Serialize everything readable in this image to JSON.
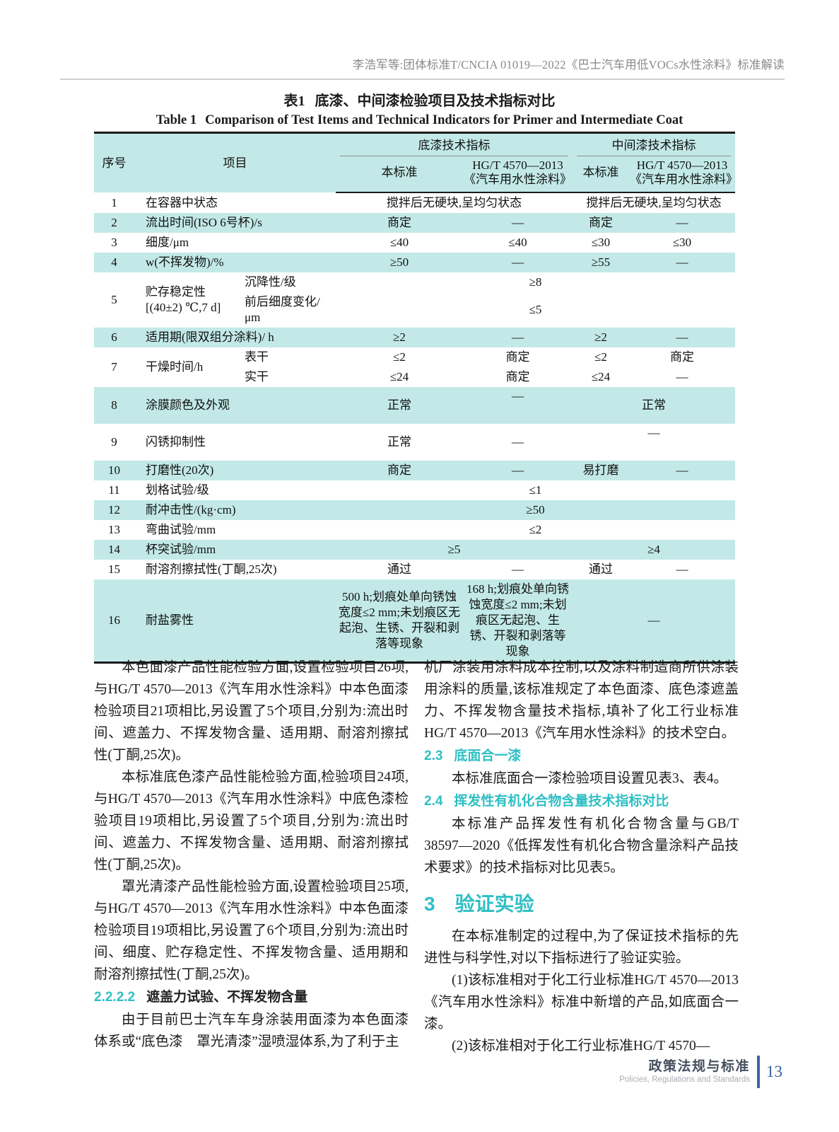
{
  "colors": {
    "teal_accent": "#2fbfc4",
    "table_stripe": "#c2e9e7",
    "footer_blue": "#33639c",
    "running_head_gray": "#8a8a8a"
  },
  "running_head": "李浩军等:团体标准T/CNCIA 01019—2022《巴士汽车用低VOCs水性涂料》标准解读",
  "table": {
    "title_zh_label": "表1",
    "title_zh": "底漆、中间漆检验项目及技术指标对比",
    "title_en_label": "Table 1",
    "title_en": "Comparison of Test Items and Technical Indicators for Primer and Intermediate Coat",
    "header": {
      "no": "序号",
      "item": "项目",
      "primer_group": "底漆技术指标",
      "intermediate_group": "中间漆技术指标",
      "this_std_primer": "本标准",
      "hgt_std_primer": "HG/T 4570—2013《汽车用水性涂料》",
      "this_std_inter": "本标准",
      "hgt_std_inter": "HG/T 4570—2013《汽车用水性涂料》"
    },
    "rows": [
      {
        "shade": false,
        "cells": [
          {
            "t": "1"
          },
          {
            "t": "在容器中状态",
            "c": 2,
            "item": true
          },
          {
            "t": "搅拌后无硬块,呈均匀状态",
            "c": 2
          },
          {
            "t": "搅拌后无硬块,呈均匀状态",
            "c": 2
          }
        ]
      },
      {
        "shade": true,
        "cells": [
          {
            "t": "2"
          },
          {
            "t": "流出时间(ISO 6号杯)/s",
            "c": 2,
            "item": true
          },
          {
            "t": "商定"
          },
          {
            "t": "—"
          },
          {
            "t": "商定"
          },
          {
            "t": "—"
          }
        ]
      },
      {
        "shade": false,
        "cells": [
          {
            "t": "3"
          },
          {
            "t": "细度/μm",
            "c": 2,
            "item": true
          },
          {
            "t": "≤40"
          },
          {
            "t": "≤40"
          },
          {
            "t": "≤30"
          },
          {
            "t": "≤30"
          }
        ]
      },
      {
        "shade": true,
        "cells": [
          {
            "t": "4"
          },
          {
            "t": "w(不挥发物)/%",
            "c": 2,
            "item": true
          },
          {
            "t": "≥50"
          },
          {
            "t": "—"
          },
          {
            "t": "≥55"
          },
          {
            "t": "—"
          }
        ]
      },
      {
        "shade": false,
        "cells": [
          {
            "t": "5",
            "r": 2
          },
          {
            "t": "贮存稳定性 [(40±2) ℃,7 d]",
            "r": 2,
            "item": true
          },
          {
            "t": "沉降性/级",
            "item": true
          },
          {
            "t": "≥8",
            "c": 4
          }
        ]
      },
      {
        "shade": false,
        "cells": [
          {
            "t": "前后细度变化/μm",
            "item": true
          },
          {
            "t": "≤5",
            "c": 4
          }
        ]
      },
      {
        "shade": true,
        "cells": [
          {
            "t": "6"
          },
          {
            "t": "适用期(限双组分涂料)/ h",
            "c": 2,
            "item": true
          },
          {
            "t": "≥2"
          },
          {
            "t": "—"
          },
          {
            "t": "≥2"
          },
          {
            "t": "—"
          }
        ]
      },
      {
        "shade": false,
        "cells": [
          {
            "t": "7",
            "r": 2
          },
          {
            "t": "干燥时间/h",
            "r": 2,
            "item": true
          },
          {
            "t": "表干",
            "item": true
          },
          {
            "t": "≤2"
          },
          {
            "t": "商定"
          },
          {
            "t": "≤2"
          },
          {
            "t": "商定"
          }
        ]
      },
      {
        "shade": false,
        "cells": [
          {
            "t": "实干",
            "item": true
          },
          {
            "t": "≤24"
          },
          {
            "t": "商定"
          },
          {
            "t": "≤24"
          },
          {
            "t": "—"
          }
        ]
      },
      {
        "shade": true,
        "tall": true,
        "cells": [
          {
            "t": "8"
          },
          {
            "t": "涂膜颜色及外观",
            "c": 2,
            "item": true
          },
          {
            "t": "正常"
          },
          {
            "t": "—",
            "raise": true
          },
          {
            "t": "正常",
            "c": 2
          }
        ]
      },
      {
        "shade": false,
        "tall": true,
        "cells": [
          {
            "t": "9"
          },
          {
            "t": "闪锈抑制性",
            "c": 2,
            "item": true
          },
          {
            "t": "正常"
          },
          {
            "t": "—"
          },
          {
            "t": "—",
            "c": 2,
            "raise": true
          }
        ]
      },
      {
        "shade": true,
        "cells": [
          {
            "t": "10"
          },
          {
            "t": "打磨性(20次)",
            "c": 2,
            "item": true
          },
          {
            "t": "商定"
          },
          {
            "t": "—"
          },
          {
            "t": "易打磨"
          },
          {
            "t": "—"
          }
        ]
      },
      {
        "shade": false,
        "cells": [
          {
            "t": "11"
          },
          {
            "t": "划格试验/级",
            "c": 2,
            "item": true
          },
          {
            "t": "≤1",
            "c": 4
          }
        ]
      },
      {
        "shade": true,
        "cells": [
          {
            "t": "12"
          },
          {
            "t": "耐冲击性/(kg·cm)",
            "c": 2,
            "item": true
          },
          {
            "t": "≥50",
            "c": 4
          }
        ]
      },
      {
        "shade": false,
        "cells": [
          {
            "t": "13"
          },
          {
            "t": "弯曲试验/mm",
            "c": 2,
            "item": true
          },
          {
            "t": "≤2",
            "c": 4
          }
        ]
      },
      {
        "shade": true,
        "cells": [
          {
            "t": "14"
          },
          {
            "t": "杯突试验/mm",
            "c": 2,
            "item": true
          },
          {
            "t": "≥5",
            "c": 2
          },
          {
            "t": "≥4",
            "c": 2
          }
        ]
      },
      {
        "shade": false,
        "cells": [
          {
            "t": "15"
          },
          {
            "t": "耐溶剂擦拭性(丁酮,25次)",
            "c": 2,
            "item": true
          },
          {
            "t": "通过"
          },
          {
            "t": "—"
          },
          {
            "t": "通过"
          },
          {
            "t": "—"
          }
        ]
      },
      {
        "shade": true,
        "cells": [
          {
            "t": "16"
          },
          {
            "t": "耐盐雾性",
            "c": 2,
            "item": true
          },
          {
            "t": "500 h;划痕处单向锈蚀宽度≤2 mm;未划痕区无起泡、生锈、开裂和剥落等现象"
          },
          {
            "t": "168 h;划痕处单向锈蚀宽度≤2 mm;未划痕区无起泡、生锈、开裂和剥落等现象"
          },
          {
            "t": "—",
            "c": 2
          }
        ]
      }
    ]
  },
  "article": {
    "columns": [
      {
        "side": "left",
        "blocks": [
          {
            "type": "p",
            "indent": true,
            "text": "本色面漆产品性能检验方面,设置检验项目26项,与HG/T 4570—2013《汽车用水性涂料》中本色面漆检验项目21项相比,另设置了5个项目,分别为:流出时间、遮盖力、不挥发物含量、适用期、耐溶剂擦拭性(丁酮,25次)。"
          },
          {
            "type": "p",
            "indent": true,
            "text": "本标准底色漆产品性能检验方面,检验项目24项,与HG/T 4570—2013《汽车用水性涂料》中底色漆检验项目19项相比,另设置了5个项目,分别为:流出时间、遮盖力、不挥发物含量、适用期、耐溶剂擦拭性(丁酮,25次)。"
          },
          {
            "type": "p",
            "indent": true,
            "text": "罩光清漆产品性能检验方面,设置检验项目25项,与HG/T 4570—2013《汽车用水性涂料》中本色面漆检验项目19项相比,另设置了6个项目,分别为:流出时间、细度、贮存稳定性、不挥发物含量、适用期和耐溶剂擦拭性(丁酮,25次)。"
          },
          {
            "type": "h4",
            "num": "2.2.2.2",
            "title": "遮盖力试验、不挥发物含量",
            "teal": false
          },
          {
            "type": "p",
            "indent": true,
            "text": "由于目前巴士汽车车身涂装用面漆为本色面漆体系或“底色漆　罩光清漆”湿喷湿体系,为了利于主"
          }
        ]
      },
      {
        "side": "right",
        "blocks": [
          {
            "type": "p",
            "indent": false,
            "text": "机厂涂装用涂料成本控制,以及涂料制造商所供涂装用涂料的质量,该标准规定了本色面漆、底色漆遮盖力、不挥发物含量技术指标,填补了化工行业标准HG/T 4570—2013《汽车用水性涂料》的技术空白。"
          },
          {
            "type": "h2",
            "num": "2.3",
            "title": "底面合一漆",
            "teal": true
          },
          {
            "type": "p",
            "indent": true,
            "text": "本标准底面合一漆检验项目设置见表3、表4。"
          },
          {
            "type": "h2",
            "num": "2.4",
            "title": "挥发性有机化合物含量技术指标对比",
            "teal": true
          },
          {
            "type": "p",
            "indent": true,
            "text": "本标准产品挥发性有机化合物含量与GB/T 38597—2020《低挥发性有机化合物含量涂料产品技术要求》的技术指标对比见表5。"
          },
          {
            "type": "h1",
            "num": "3",
            "title": "验证实验",
            "teal": true
          },
          {
            "type": "p",
            "indent": true,
            "text": "在本标准制定的过程中,为了保证技术指标的先进性与科学性,对以下指标进行了验证实验。"
          },
          {
            "type": "p",
            "indent": true,
            "text": "(1)该标准相对于化工行业标准HG/T 4570—2013《汽车用水性涂料》标准中新增的产品,如底面合一漆。"
          },
          {
            "type": "p",
            "indent": true,
            "text": "(2)该标准相对于化工行业标准HG/T 4570—"
          }
        ]
      }
    ]
  },
  "footer": {
    "section_zh": "政策法规与标准",
    "section_en": "Policies, Regulations and Standards",
    "page_number": "13"
  }
}
